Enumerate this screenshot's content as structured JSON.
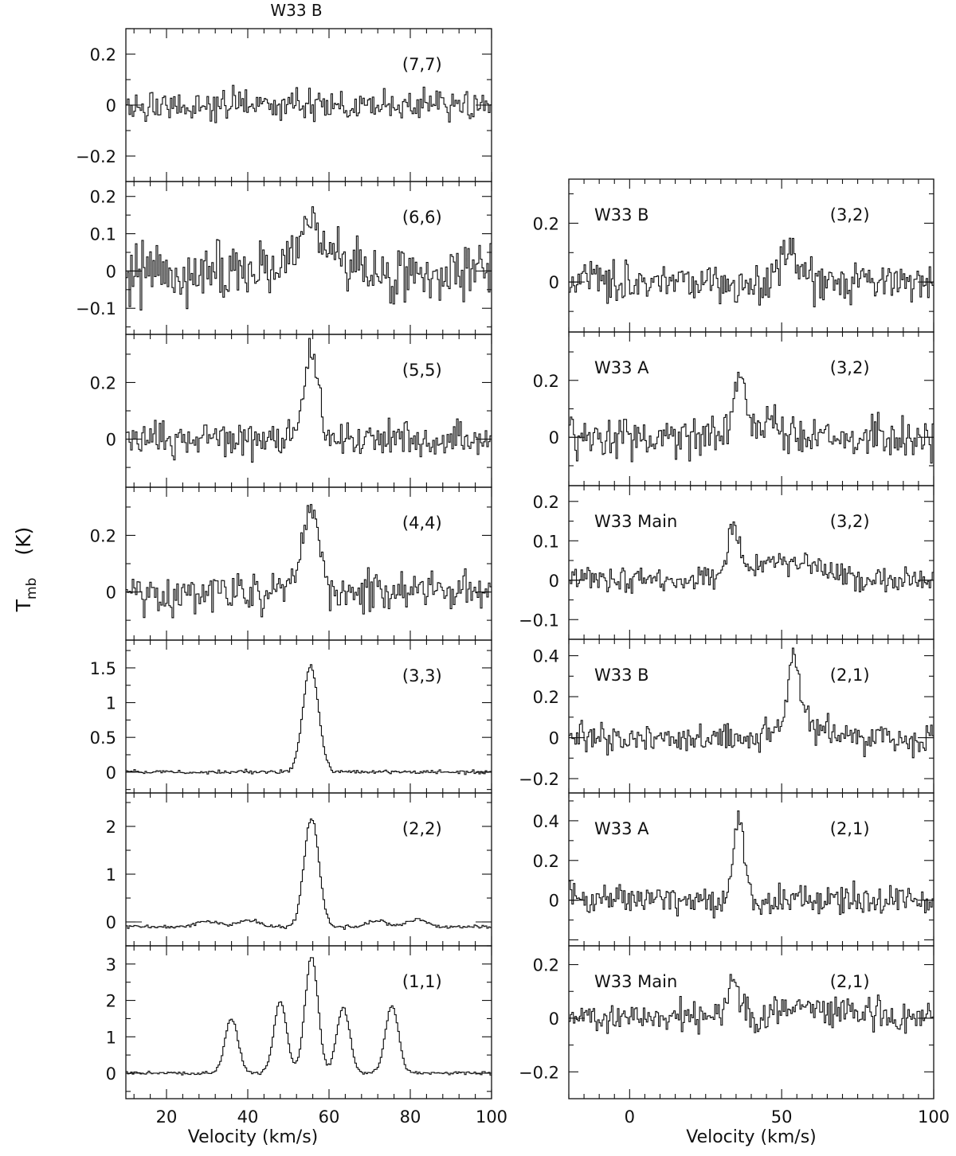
{
  "figure": {
    "title": "W33 B",
    "ylabel": "T",
    "ylabel_sub": "mb",
    "ylabel_unit": "(K)"
  },
  "chart_data": [
    {
      "type": "line",
      "panel": "left",
      "xlabel": "Velocity (km/s)",
      "xlim": [
        10,
        100
      ],
      "xticks": [
        20,
        40,
        60,
        80,
        100
      ],
      "panels": [
        {
          "label": "(7,7)",
          "ylim": [
            -0.3,
            0.3
          ],
          "yticks": [
            0.2,
            0,
            -0.2
          ],
          "ytick_labels": [
            "0.2",
            "0",
            "−0.2"
          ],
          "noise": 0.045,
          "baseline": 0,
          "seed": 7,
          "lines": []
        },
        {
          "label": "(6,6)",
          "ylim": [
            -0.17,
            0.24
          ],
          "yticks": [
            0.2,
            0.1,
            0,
            -0.1
          ],
          "ytick_labels": [
            "0.2",
            "0.1",
            "0",
            "−0.1"
          ],
          "noise": 0.055,
          "baseline": 0,
          "seed": 6,
          "lines": [
            {
              "v": 56,
              "a": 0.11,
              "w": 3.5
            }
          ]
        },
        {
          "label": "(5,5)",
          "ylim": [
            -0.17,
            0.37
          ],
          "yticks": [
            0.2,
            0
          ],
          "ytick_labels": [
            "0.2",
            "0"
          ],
          "noise": 0.045,
          "baseline": 0,
          "seed": 5,
          "lines": [
            {
              "v": 55.5,
              "a": 0.3,
              "w": 1.8
            }
          ]
        },
        {
          "label": "(4,4)",
          "ylim": [
            -0.17,
            0.37
          ],
          "yticks": [
            0.2,
            0
          ],
          "ytick_labels": [
            "0.2",
            "0"
          ],
          "noise": 0.05,
          "baseline": 0,
          "seed": 4,
          "lines": [
            {
              "v": 55.5,
              "a": 0.28,
              "w": 2.2
            }
          ]
        },
        {
          "label": "(3,3)",
          "ylim": [
            -0.3,
            1.9
          ],
          "yticks": [
            1.5,
            1,
            0.5,
            0
          ],
          "ytick_labels": [
            "1.5",
            "1",
            "0.5",
            "0"
          ],
          "noise": 0.02,
          "baseline": 0,
          "seed": 3,
          "lines": [
            {
              "v": 55.5,
              "a": 1.52,
              "w": 1.9
            }
          ]
        },
        {
          "label": "(2,2)",
          "ylim": [
            -0.5,
            2.7
          ],
          "yticks": [
            2,
            1,
            0
          ],
          "ytick_labels": [
            "2",
            "1",
            "0"
          ],
          "noise": 0.03,
          "baseline": -0.1,
          "seed": 2,
          "lines": [
            {
              "v": 55.7,
              "a": 2.3,
              "w": 1.8
            },
            {
              "v": 30,
              "a": 0.13,
              "w": 2.5
            },
            {
              "v": 40,
              "a": 0.14,
              "w": 2.5
            },
            {
              "v": 72,
              "a": 0.12,
              "w": 2.5
            },
            {
              "v": 82,
              "a": 0.17,
              "w": 2.2
            }
          ]
        },
        {
          "label": "(1,1)",
          "ylim": [
            -0.7,
            3.5
          ],
          "yticks": [
            3,
            2,
            1,
            0
          ],
          "ytick_labels": [
            "3",
            "2",
            "1",
            "0"
          ],
          "noise": 0.03,
          "baseline": 0,
          "seed": 1,
          "lines": [
            {
              "v": 36,
              "a": 1.5,
              "w": 1.6
            },
            {
              "v": 48,
              "a": 1.95,
              "w": 1.6
            },
            {
              "v": 55.7,
              "a": 3.2,
              "w": 1.6
            },
            {
              "v": 63.5,
              "a": 1.8,
              "w": 1.6
            },
            {
              "v": 75.5,
              "a": 1.85,
              "w": 1.6
            }
          ]
        }
      ]
    },
    {
      "type": "line",
      "panel": "right",
      "xlabel": "Velocity (km/s)",
      "xlim": [
        -20,
        100
      ],
      "xticks": [
        0,
        50,
        100
      ],
      "panels": [
        {
          "source": "W33 B",
          "label": "(3,2)",
          "ylim": [
            -0.17,
            0.35
          ],
          "yticks": [
            0.2,
            0
          ],
          "ytick_labels": [
            "0.2",
            "0"
          ],
          "noise": 0.05,
          "baseline": 0,
          "seed": 32,
          "lines": [
            {
              "v": 53,
              "a": 0.13,
              "w": 2.5
            }
          ]
        },
        {
          "source": "W33 A",
          "label": "(3,2)",
          "ylim": [
            -0.17,
            0.37
          ],
          "yticks": [
            0.2,
            0
          ],
          "ytick_labels": [
            "0.2",
            "0"
          ],
          "noise": 0.05,
          "baseline": 0,
          "seed": 33,
          "lines": [
            {
              "v": 36,
              "a": 0.23,
              "w": 1.8
            },
            {
              "v": 45,
              "a": 0.05,
              "w": 3
            }
          ]
        },
        {
          "source": "W33 Main",
          "label": "(3,2)",
          "ylim": [
            -0.15,
            0.24
          ],
          "yticks": [
            0.2,
            0.1,
            0,
            -0.1
          ],
          "ytick_labels": [
            "0.2",
            "0.1",
            "0",
            "−0.1"
          ],
          "noise": 0.022,
          "baseline": 0,
          "seed": 34,
          "lines": [
            {
              "v": 34,
              "a": 0.11,
              "w": 2
            },
            {
              "v": 50,
              "a": 0.05,
              "w": 12
            }
          ]
        },
        {
          "source": "W33 B",
          "label": "(2,1)",
          "ylim": [
            -0.27,
            0.48
          ],
          "yticks": [
            0.4,
            0.2,
            0,
            -0.2
          ],
          "ytick_labels": [
            "0.4",
            "0.2",
            "0",
            "−0.2"
          ],
          "noise": 0.055,
          "baseline": 0,
          "seed": 21,
          "lines": [
            {
              "v": 54,
              "a": 0.3,
              "w": 1.8
            },
            {
              "v": 56,
              "a": 0.1,
              "w": 6
            }
          ]
        },
        {
          "source": "W33 A",
          "label": "(2,1)",
          "ylim": [
            -0.23,
            0.54
          ],
          "yticks": [
            0.4,
            0.2,
            0
          ],
          "ytick_labels": [
            "0.4",
            "0.2",
            "0"
          ],
          "noise": 0.055,
          "baseline": 0,
          "seed": 22,
          "lines": [
            {
              "v": 36,
              "a": 0.42,
              "w": 1.7
            }
          ]
        },
        {
          "source": "W33 Main",
          "label": "(2,1)",
          "ylim": [
            -0.3,
            0.27
          ],
          "yticks": [
            0.2,
            0,
            -0.2
          ],
          "ytick_labels": [
            "0.2",
            "0",
            "−0.2"
          ],
          "noise": 0.04,
          "baseline": 0,
          "seed": 23,
          "lines": [
            {
              "v": 34,
              "a": 0.14,
              "w": 2
            },
            {
              "v": 60,
              "a": 0.03,
              "w": 15
            }
          ]
        }
      ]
    }
  ]
}
